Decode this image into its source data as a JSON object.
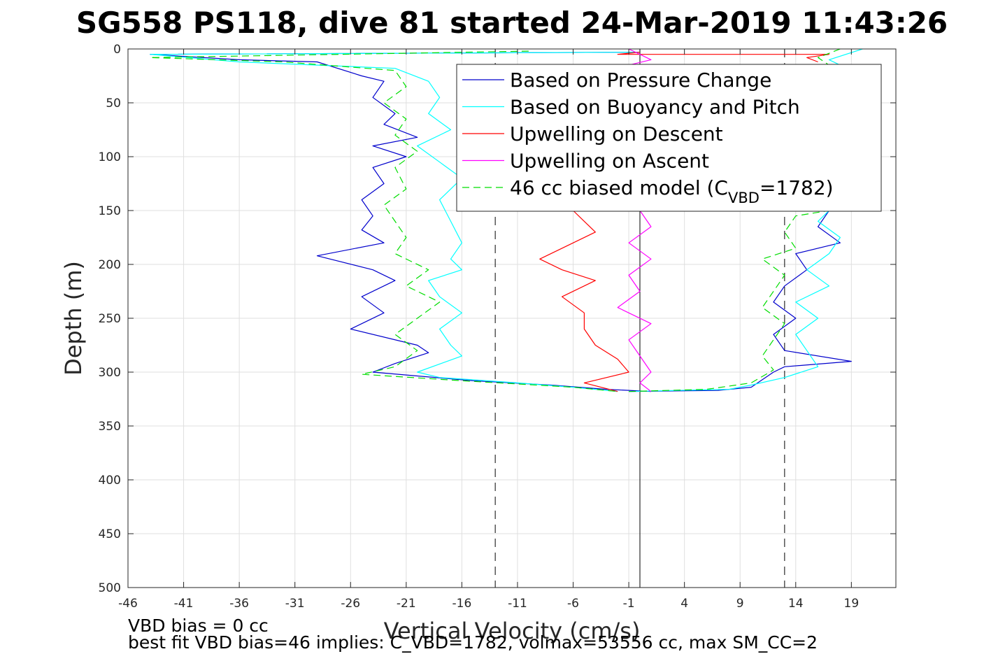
{
  "chart_data": {
    "type": "line",
    "title": "SG558 PS118, dive 81 started 24-Mar-2019 11:43:26",
    "xlabel": "Vertical Velocity (cm/s)",
    "ylabel": "Depth (m)",
    "xlim": [
      -46,
      23
    ],
    "ylim": [
      0,
      500
    ],
    "y_reversed": true,
    "x_ticks": [
      -46,
      -41,
      -36,
      -31,
      -26,
      -21,
      -16,
      -11,
      -6,
      -1,
      4,
      9,
      14,
      19
    ],
    "y_ticks": [
      0,
      50,
      100,
      150,
      200,
      250,
      300,
      350,
      400,
      450,
      500
    ],
    "grid": true,
    "legend_position": "top-right",
    "reference_lines": [
      {
        "x": 0,
        "style": "solid"
      },
      {
        "x": -13,
        "style": "dashed"
      },
      {
        "x": 13,
        "style": "dashed"
      }
    ],
    "series": [
      {
        "name": "Based on Pressure Change",
        "color": "#0000cc",
        "style": "solid",
        "legend_parts": [
          "Based on Pressure Change"
        ],
        "segments": [
          {
            "points": [
              [
                0,
                3
              ],
              [
                -44,
                5
              ],
              [
                -36,
                10
              ],
              [
                -29,
                12
              ],
              [
                -25,
                25
              ],
              [
                -23,
                30
              ],
              [
                -24,
                45
              ],
              [
                -22,
                60
              ],
              [
                -23,
                70
              ],
              [
                -20,
                82
              ],
              [
                -24,
                90
              ],
              [
                -21,
                100
              ],
              [
                -24,
                110
              ],
              [
                -23,
                125
              ],
              [
                -25,
                140
              ],
              [
                -24,
                155
              ],
              [
                -25,
                168
              ],
              [
                -23,
                180
              ],
              [
                -29,
                192
              ],
              [
                -24,
                205
              ],
              [
                -22,
                215
              ],
              [
                -25,
                230
              ],
              [
                -23,
                245
              ],
              [
                -26,
                260
              ],
              [
                -20,
                275
              ],
              [
                -19,
                282
              ],
              [
                -22,
                292
              ],
              [
                -24,
                300
              ],
              [
                -15,
                308
              ],
              [
                -8,
                312
              ],
              [
                -3,
                316
              ],
              [
                1,
                318
              ]
            ]
          },
          {
            "points": [
              [
                -1,
                318
              ],
              [
                7,
                317
              ],
              [
                10,
                314
              ],
              [
                12,
                300
              ],
              [
                13,
                295
              ],
              [
                19,
                290
              ],
              [
                13,
                280
              ],
              [
                12,
                265
              ],
              [
                14,
                250
              ],
              [
                12,
                235
              ],
              [
                13,
                220
              ],
              [
                15,
                205
              ],
              [
                14,
                190
              ],
              [
                18,
                180
              ],
              [
                16,
                165
              ],
              [
                17,
                150
              ]
            ]
          }
        ]
      },
      {
        "name": "Based on Buoyancy and Pitch",
        "color": "#00ffff",
        "style": "solid",
        "legend_parts": [
          "Based on Buoyancy and Pitch"
        ],
        "segments": [
          {
            "points": [
              [
                0,
                3
              ],
              [
                -44,
                5
              ],
              [
                -36,
                12
              ],
              [
                -22,
                18
              ],
              [
                -19,
                30
              ],
              [
                -18,
                45
              ],
              [
                -19,
                60
              ],
              [
                -17,
                75
              ],
              [
                -20,
                90
              ],
              [
                -18,
                105
              ],
              [
                -16,
                120
              ],
              [
                -18,
                140
              ],
              [
                -17,
                160
              ],
              [
                -16,
                180
              ],
              [
                -17,
                195
              ],
              [
                -16,
                205
              ],
              [
                -19,
                215
              ],
              [
                -18,
                230
              ],
              [
                -16,
                245
              ],
              [
                -18,
                260
              ],
              [
                -17,
                275
              ],
              [
                -16,
                285
              ],
              [
                -20,
                300
              ],
              [
                -18,
                305
              ],
              [
                -11,
                310
              ],
              [
                -6,
                314
              ],
              [
                -2,
                318
              ]
            ]
          },
          {
            "points": [
              [
                -1,
                318
              ],
              [
                8,
                316
              ],
              [
                10,
                312
              ],
              [
                13,
                305
              ],
              [
                16,
                295
              ],
              [
                15,
                280
              ],
              [
                14,
                265
              ],
              [
                16,
                250
              ],
              [
                14,
                235
              ],
              [
                17,
                220
              ],
              [
                15,
                205
              ],
              [
                17,
                190
              ],
              [
                18,
                175
              ],
              [
                16,
                160
              ],
              [
                17,
                150
              ]
            ]
          },
          {
            "points": [
              [
                20,
                0
              ],
              [
                17,
                10
              ],
              [
                19,
                20
              ]
            ]
          }
        ]
      },
      {
        "name": "Upwelling on Descent",
        "color": "#ff0000",
        "style": "solid",
        "legend_parts": [
          "Upwelling on Descent"
        ],
        "segments": [
          {
            "points": [
              [
                0,
                3
              ],
              [
                -2,
                5
              ],
              [
                17,
                5
              ],
              [
                15,
                8
              ],
              [
                16,
                12
              ]
            ]
          },
          {
            "points": [
              [
                -6,
                150
              ],
              [
                -5,
                160
              ],
              [
                -4,
                170
              ],
              [
                -7,
                185
              ],
              [
                -9,
                195
              ],
              [
                -7,
                205
              ],
              [
                -4,
                215
              ],
              [
                -7,
                230
              ],
              [
                -5,
                245
              ],
              [
                -5,
                260
              ],
              [
                -4,
                275
              ],
              [
                -2,
                288
              ],
              [
                -1,
                300
              ],
              [
                -5,
                310
              ],
              [
                -2,
                318
              ]
            ]
          }
        ]
      },
      {
        "name": "Upwelling on Ascent",
        "color": "#ff00ff",
        "style": "solid",
        "legend_parts": [
          "Upwelling on Ascent"
        ],
        "segments": [
          {
            "points": [
              [
                -1,
                0
              ],
              [
                0,
                5
              ],
              [
                1,
                10
              ],
              [
                -1,
                15
              ]
            ]
          },
          {
            "points": [
              [
                0,
                150
              ],
              [
                1,
                165
              ],
              [
                -1,
                180
              ],
              [
                1,
                195
              ],
              [
                -1,
                210
              ],
              [
                0,
                225
              ],
              [
                -2,
                240
              ],
              [
                1,
                255
              ],
              [
                -1,
                270
              ],
              [
                0,
                285
              ],
              [
                1,
                300
              ],
              [
                0,
                310
              ],
              [
                1,
                318
              ]
            ]
          }
        ]
      },
      {
        "name": "46 cc biased model (C_VBD=1782)",
        "color": "#00dd00",
        "style": "dashed",
        "legend_parts": [
          "46 cc biased model (C",
          "VBD",
          "=1782)"
        ],
        "segments": [
          {
            "points": [
              [
                -10,
                2
              ],
              [
                -44,
                8
              ],
              [
                -32,
                12
              ],
              [
                -22,
                20
              ],
              [
                -21,
                35
              ],
              [
                -23,
                50
              ],
              [
                -21,
                65
              ],
              [
                -22,
                80
              ],
              [
                -20,
                95
              ],
              [
                -22,
                110
              ],
              [
                -21,
                130
              ],
              [
                -23,
                145
              ],
              [
                -22,
                160
              ],
              [
                -21,
                175
              ],
              [
                -22,
                190
              ],
              [
                -19,
                205
              ],
              [
                -21,
                220
              ],
              [
                -18,
                235
              ],
              [
                -20,
                250
              ],
              [
                -22,
                265
              ],
              [
                -20,
                280
              ],
              [
                -22,
                295
              ],
              [
                -25,
                302
              ],
              [
                -16,
                308
              ],
              [
                -6,
                314
              ],
              [
                -2,
                318
              ]
            ]
          },
          {
            "points": [
              [
                -1,
                318
              ],
              [
                6,
                316
              ],
              [
                10,
                310
              ],
              [
                12,
                298
              ],
              [
                11,
                285
              ],
              [
                12,
                270
              ],
              [
                13,
                255
              ],
              [
                11,
                240
              ],
              [
                12,
                225
              ],
              [
                13,
                210
              ],
              [
                11,
                195
              ],
              [
                14,
                185
              ],
              [
                13,
                170
              ],
              [
                14,
                155
              ],
              [
                17,
                150
              ]
            ]
          },
          {
            "points": [
              [
                18,
                0
              ],
              [
                16,
                8
              ],
              [
                17,
                15
              ]
            ]
          }
        ]
      }
    ],
    "annotations": [
      "VBD bias = 0 cc",
      "best fit VBD bias=46 implies: C_VBD=1782, volmax=53556 cc, max SM_CC=2"
    ]
  }
}
